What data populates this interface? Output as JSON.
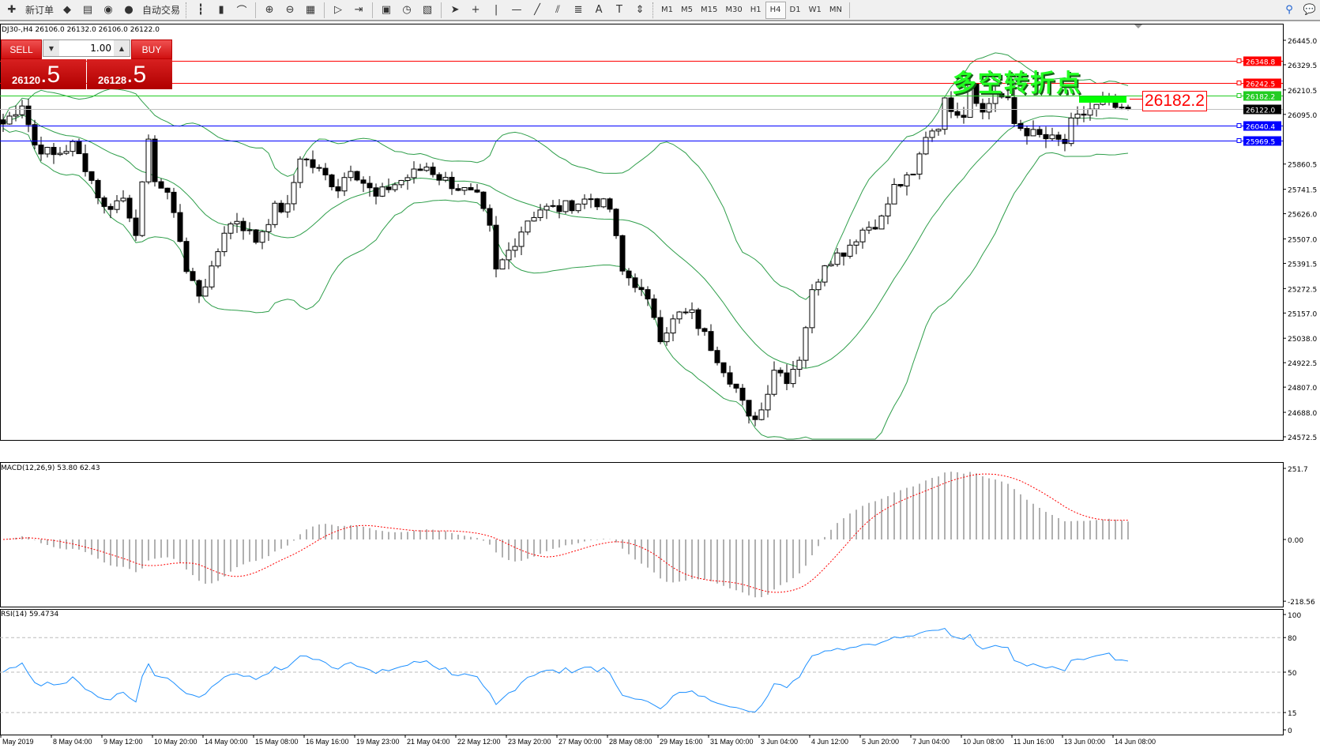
{
  "toolbar": {
    "new_order": "新订单",
    "auto_trading": "自动交易",
    "icons": [
      "new-order-icon",
      "market-watch-icon",
      "navigator-icon",
      "signals-icon",
      "auto-trading-icon",
      "bar-chart-icon",
      "candlestick-icon",
      "line-chart-icon",
      "zoom-in-icon",
      "zoom-out-icon",
      "tile-windows-icon",
      "auto-scroll-icon",
      "chart-shift-icon",
      "indicators-icon",
      "periods-icon",
      "templates-icon",
      "cursor-icon",
      "crosshair-icon",
      "vertical-line-icon",
      "horizontal-line-icon",
      "trendline-icon",
      "equidistant-channel-icon",
      "fibonacci-icon",
      "text-icon",
      "text-label-icon",
      "arrows-icon"
    ],
    "timeframes": [
      "M1",
      "M5",
      "M15",
      "M30",
      "H1",
      "H4",
      "D1",
      "W1",
      "MN"
    ],
    "active_timeframe": "H4"
  },
  "window": {
    "title": "DJ30-,H4  26106.0 26132.0 26106.0 26122.0"
  },
  "trade_panel": {
    "sell": "SELL",
    "buy": "BUY",
    "lot": "1.00",
    "bid_main": "26120",
    "bid_pip": ".5",
    "ask_main": "26128",
    "ask_pip": ".5"
  },
  "annotation": {
    "text": "多空转折点",
    "price_label": "26182.2"
  },
  "colors": {
    "bollinger": "#2e9e4a",
    "resistance": "#ff0000",
    "pivot": "#22cc22",
    "support": "#0000ff",
    "bid_line": "#c0c0c0",
    "macd_hist": "#b0b0b0",
    "macd_signal": "#ff0000",
    "rsi": "#1e90ff"
  },
  "chart_data": [
    {
      "type": "candlestick",
      "symbol": "DJ30-",
      "timeframe": "H4",
      "ylim": [
        24572.5,
        26445.0
      ],
      "y_ticks": [
        "26445.0",
        "26329.5",
        "26210.5",
        "26095.0",
        "25860.5",
        "25741.5",
        "25626.0",
        "25507.0",
        "25391.5",
        "25272.5",
        "25157.0",
        "25038.0",
        "24922.5",
        "24807.0",
        "24688.0",
        "24572.5"
      ],
      "x_ticks": [
        "May 2019",
        "8 May 04:00",
        "9 May 12:00",
        "10 May 20:00",
        "14 May 00:00",
        "15 May 08:00",
        "16 May 16:00",
        "19 May 23:00",
        "21 May 04:00",
        "22 May 12:00",
        "23 May 20:00",
        "27 May 00:00",
        "28 May 08:00",
        "29 May 16:00",
        "31 May 00:00",
        "3 Jun 04:00",
        "4 Jun 12:00",
        "5 Jun 20:00",
        "7 Jun 04:00",
        "10 Jun 08:00",
        "11 Jun 16:00",
        "13 Jun 00:00",
        "14 Jun 08:00"
      ],
      "close_path_bar_price": [
        [
          0,
          26050
        ],
        [
          3,
          26150
        ],
        [
          5,
          25950
        ],
        [
          8,
          25900
        ],
        [
          11,
          25950
        ],
        [
          13,
          25850
        ],
        [
          16,
          25650
        ],
        [
          19,
          25700
        ],
        [
          21,
          25550
        ],
        [
          23,
          25950
        ],
        [
          24,
          25800
        ],
        [
          27,
          25650
        ],
        [
          29,
          25350
        ],
        [
          31,
          25250
        ],
        [
          33,
          25350
        ],
        [
          35,
          25550
        ],
        [
          37,
          25600
        ],
        [
          40,
          25500
        ],
        [
          43,
          25650
        ],
        [
          45,
          25650
        ],
        [
          47,
          25900
        ],
        [
          51,
          25800
        ],
        [
          53,
          25750
        ],
        [
          55,
          25850
        ],
        [
          59,
          25700
        ],
        [
          61,
          25750
        ],
        [
          64,
          25800
        ],
        [
          67,
          25850
        ],
        [
          69,
          25800
        ],
        [
          72,
          25750
        ],
        [
          75,
          25700
        ],
        [
          77,
          25550
        ],
        [
          78,
          25350
        ],
        [
          80,
          25450
        ],
        [
          83,
          25600
        ],
        [
          85,
          25650
        ],
        [
          88,
          25650
        ],
        [
          93,
          25700
        ],
        [
          96,
          25650
        ],
        [
          98,
          25350
        ],
        [
          100,
          25300
        ],
        [
          103,
          25150
        ],
        [
          104,
          25050
        ],
        [
          107,
          25150
        ],
        [
          109,
          25150
        ],
        [
          111,
          25050
        ],
        [
          113,
          24950
        ],
        [
          116,
          24800
        ],
        [
          118,
          24650
        ],
        [
          120,
          24700
        ],
        [
          122,
          24900
        ],
        [
          124,
          24850
        ],
        [
          126,
          24950
        ],
        [
          128,
          25250
        ],
        [
          130,
          25400
        ],
        [
          133,
          25450
        ],
        [
          136,
          25550
        ],
        [
          139,
          25600
        ],
        [
          141,
          25750
        ],
        [
          144,
          25800
        ],
        [
          146,
          26000
        ],
        [
          148,
          26050
        ],
        [
          149,
          26150
        ],
        [
          152,
          26100
        ],
        [
          153,
          26250
        ],
        [
          155,
          26100
        ],
        [
          157,
          26200
        ],
        [
          159,
          26150
        ],
        [
          160,
          26050
        ],
        [
          163,
          26000
        ],
        [
          165,
          25980
        ],
        [
          168,
          25960
        ],
        [
          169,
          26050
        ],
        [
          172,
          26120
        ],
        [
          175,
          26150
        ],
        [
          177,
          26100
        ],
        [
          178,
          26122
        ]
      ],
      "horizontal_lines": [
        {
          "price": "26348.8",
          "kind": "resistance"
        },
        {
          "price": "26242.5",
          "kind": "resistance"
        },
        {
          "price": "26182.2",
          "kind": "pivot"
        },
        {
          "price": "26122.0",
          "kind": "bid"
        },
        {
          "price": "26040.4",
          "kind": "support"
        },
        {
          "price": "25969.5",
          "kind": "support"
        }
      ],
      "overlay": "Bollinger Bands(20,2)"
    },
    {
      "type": "bar+line",
      "label": "MACD(12,26,9) 53.80 62.43",
      "ylim": [
        -218.56,
        251.7
      ],
      "y_ticks": [
        "251.7",
        "0.00",
        "-218.56"
      ]
    },
    {
      "type": "line",
      "label": "RSI(14) 59.4734",
      "ylim": [
        0,
        100
      ],
      "y_ticks": [
        "100",
        "80",
        "50",
        "15",
        "0"
      ],
      "levels": [
        80,
        50,
        15
      ]
    }
  ]
}
